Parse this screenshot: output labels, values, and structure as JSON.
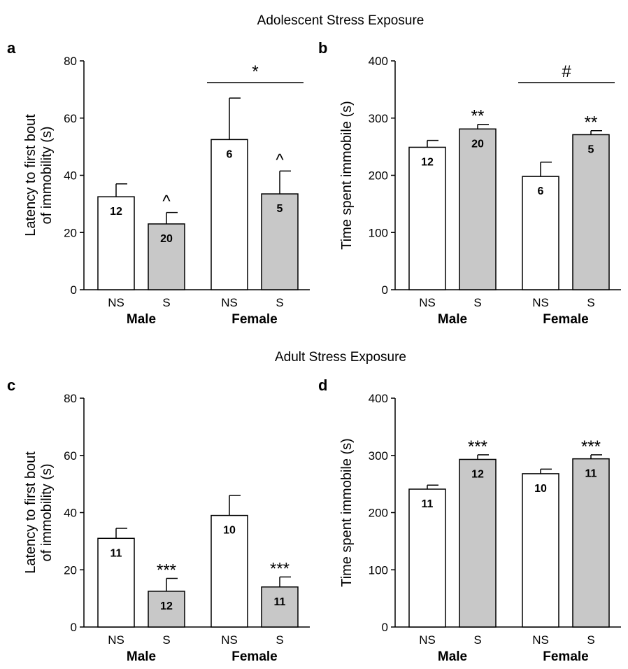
{
  "section_titles": {
    "top": "Adolescent Stress Exposure",
    "bottom": "Adult Stress Exposure"
  },
  "colors": {
    "ns_fill": "#ffffff",
    "s_fill": "#c8c8c8",
    "ink": "#000000"
  },
  "chart_data": [
    {
      "panel": "a",
      "type": "bar",
      "ylabel": "Latency to first bout\nof immobility (s)",
      "ylim": [
        0,
        80
      ],
      "yticks": [
        0,
        20,
        40,
        60,
        80
      ],
      "groups": [
        "Male",
        "Female"
      ],
      "categories": [
        "NS",
        "S",
        "NS",
        "S"
      ],
      "values": [
        32.5,
        23,
        52.5,
        33.5
      ],
      "errors": [
        4.5,
        4,
        14.5,
        8
      ],
      "n": [
        "12",
        "20",
        "6",
        "5"
      ],
      "annotations": [
        "",
        "^",
        "",
        "^"
      ],
      "bracket": {
        "label": "*",
        "over": "Female"
      }
    },
    {
      "panel": "b",
      "type": "bar",
      "ylabel": "Time spent immobile (s)",
      "ylim": [
        0,
        400
      ],
      "yticks": [
        0,
        100,
        200,
        300,
        400
      ],
      "groups": [
        "Male",
        "Female"
      ],
      "categories": [
        "NS",
        "S",
        "NS",
        "S"
      ],
      "values": [
        249,
        281,
        198,
        271
      ],
      "errors": [
        12,
        8,
        25,
        7
      ],
      "n": [
        "12",
        "20",
        "6",
        "5"
      ],
      "annotations": [
        "",
        "**",
        "",
        "**"
      ],
      "bracket": {
        "label": "#",
        "over": "Female"
      }
    },
    {
      "panel": "c",
      "type": "bar",
      "ylabel": "Latency to first bout\nof immobility (s)",
      "ylim": [
        0,
        80
      ],
      "yticks": [
        0,
        20,
        40,
        60,
        80
      ],
      "groups": [
        "Male",
        "Female"
      ],
      "categories": [
        "NS",
        "S",
        "NS",
        "S"
      ],
      "values": [
        31,
        12.5,
        39,
        14
      ],
      "errors": [
        3.5,
        4.5,
        7,
        3.5
      ],
      "n": [
        "11",
        "12",
        "10",
        "11"
      ],
      "annotations": [
        "",
        "***",
        "",
        "***"
      ],
      "bracket": null
    },
    {
      "panel": "d",
      "type": "bar",
      "ylabel": "Time spent immobile (s)",
      "ylim": [
        0,
        400
      ],
      "yticks": [
        0,
        100,
        200,
        300,
        400
      ],
      "groups": [
        "Male",
        "Female"
      ],
      "categories": [
        "NS",
        "S",
        "NS",
        "S"
      ],
      "values": [
        241,
        293,
        268,
        294
      ],
      "errors": [
        7,
        8,
        8,
        7
      ],
      "n": [
        "11",
        "12",
        "10",
        "11"
      ],
      "annotations": [
        "",
        "***",
        "",
        "***"
      ],
      "bracket": null
    }
  ]
}
